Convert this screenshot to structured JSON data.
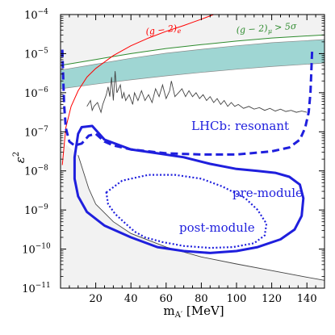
{
  "chart_data": {
    "type": "line",
    "xlabel": "m",
    "xlabel_sub": "A′",
    "xlabel_unit": " [MeV]",
    "ylabel": "ε",
    "ylabel_sup": "2",
    "xlim": [
      0,
      150
    ],
    "ylim_log10": [
      -11,
      -4
    ],
    "yscale": "log",
    "x_ticks": [
      {
        "value": 20,
        "label": "20"
      },
      {
        "value": 40,
        "label": "40"
      },
      {
        "value": 60,
        "label": "60"
      },
      {
        "value": 80,
        "label": "80"
      },
      {
        "value": 100,
        "label": "100"
      },
      {
        "value": 120,
        "label": "120"
      },
      {
        "value": 140,
        "label": "140"
      }
    ],
    "y_ticks": [
      {
        "exp": -11,
        "base": "10",
        "sup": "−11"
      },
      {
        "exp": -10,
        "base": "10",
        "sup": "−10"
      },
      {
        "exp": -9,
        "base": "10",
        "sup": "−9"
      },
      {
        "exp": -8,
        "base": "10",
        "sup": "−8"
      },
      {
        "exp": -7,
        "base": "10",
        "sup": "−7"
      },
      {
        "exp": -6,
        "base": "10",
        "sup": "−6"
      },
      {
        "exp": -5,
        "base": "10",
        "sup": "−5"
      },
      {
        "exp": -4,
        "base": "10",
        "sup": "−4"
      }
    ],
    "annotations": {
      "ge_label": {
        "main": "(g − 2)",
        "sub": "e"
      },
      "gmu_label": {
        "main": "(g − 2)",
        "sub": "μ",
        "suffix": " > 5σ"
      },
      "resonant": "LHCb: resonant",
      "premodule": "pre-module",
      "postmodule": "post-module"
    },
    "colors": {
      "excluded_fill": "#f2f2f2",
      "band_fill": "#9fd6d3",
      "band_edge": "#8a8a8a",
      "ge_line": "#ff0000",
      "gmu_line": "#2e8b2e",
      "lhcb": "#1f1fdd",
      "limit_line": "#444444"
    },
    "series": {
      "beam_dump_upper_log10": [
        [
          10,
          -7.6
        ],
        [
          16,
          -8.45
        ],
        [
          20,
          -8.85
        ],
        [
          30,
          -9.3
        ],
        [
          40,
          -9.6
        ],
        [
          60,
          -9.95
        ],
        [
          80,
          -10.2
        ],
        [
          100,
          -10.38
        ],
        [
          120,
          -10.55
        ],
        [
          140,
          -10.72
        ],
        [
          150,
          -10.8
        ]
      ],
      "gmu_upper_log10": [
        [
          0,
          -5.3
        ],
        [
          20,
          -5.15
        ],
        [
          40,
          -5.0
        ],
        [
          60,
          -4.87
        ],
        [
          80,
          -4.77
        ],
        [
          100,
          -4.68
        ],
        [
          120,
          -4.6
        ],
        [
          150,
          -4.52
        ]
      ],
      "gmu_band_lower_log10": [
        [
          0,
          -5.9
        ],
        [
          20,
          -5.78
        ],
        [
          40,
          -5.67
        ],
        [
          60,
          -5.57
        ],
        [
          80,
          -5.48
        ],
        [
          100,
          -5.4
        ],
        [
          120,
          -5.33
        ],
        [
          150,
          -5.24
        ]
      ],
      "ge_log10": [
        [
          1,
          -7.85
        ],
        [
          3,
          -6.9
        ],
        [
          6,
          -6.35
        ],
        [
          10,
          -5.95
        ],
        [
          15,
          -5.6
        ],
        [
          20,
          -5.38
        ],
        [
          30,
          -5.05
        ],
        [
          40,
          -4.8
        ],
        [
          50,
          -4.6
        ],
        [
          60,
          -4.43
        ],
        [
          70,
          -4.28
        ],
        [
          75,
          -4.2
        ],
        [
          80,
          -4.12
        ],
        [
          87,
          -4.0
        ]
      ],
      "searches_limit_log10": [
        [
          15,
          -6.35
        ],
        [
          17,
          -6.2
        ],
        [
          18,
          -6.45
        ],
        [
          19,
          -6.35
        ],
        [
          21,
          -6.25
        ],
        [
          23,
          -6.5
        ],
        [
          24,
          -6.3
        ],
        [
          26,
          -6.05
        ],
        [
          27,
          -5.85
        ],
        [
          28,
          -6.1
        ],
        [
          29,
          -5.6
        ],
        [
          30,
          -6.2
        ],
        [
          31,
          -5.45
        ],
        [
          32,
          -6.0
        ],
        [
          34,
          -5.8
        ],
        [
          35,
          -6.15
        ],
        [
          36,
          -6.0
        ],
        [
          37,
          -6.2
        ],
        [
          39,
          -6.05
        ],
        [
          41,
          -6.3
        ],
        [
          42,
          -6.0
        ],
        [
          44,
          -6.2
        ],
        [
          46,
          -5.95
        ],
        [
          48,
          -6.2
        ],
        [
          50,
          -6.05
        ],
        [
          52,
          -6.25
        ],
        [
          54,
          -5.9
        ],
        [
          56,
          -6.1
        ],
        [
          58,
          -5.8
        ],
        [
          60,
          -6.15
        ],
        [
          62,
          -5.95
        ],
        [
          63,
          -5.7
        ],
        [
          65,
          -6.1
        ],
        [
          67,
          -6.0
        ],
        [
          69,
          -5.9
        ],
        [
          71,
          -6.1
        ],
        [
          73,
          -5.95
        ],
        [
          75,
          -6.1
        ],
        [
          77,
          -6.0
        ],
        [
          79,
          -6.15
        ],
        [
          81,
          -6.05
        ],
        [
          83,
          -6.2
        ],
        [
          85,
          -6.1
        ],
        [
          87,
          -6.25
        ],
        [
          89,
          -6.15
        ],
        [
          91,
          -6.3
        ],
        [
          93,
          -6.2
        ],
        [
          95,
          -6.35
        ],
        [
          97,
          -6.25
        ],
        [
          99,
          -6.35
        ],
        [
          101,
          -6.3
        ],
        [
          104,
          -6.4
        ],
        [
          107,
          -6.35
        ],
        [
          110,
          -6.42
        ],
        [
          113,
          -6.38
        ],
        [
          116,
          -6.45
        ],
        [
          119,
          -6.4
        ],
        [
          122,
          -6.47
        ],
        [
          125,
          -6.42
        ],
        [
          128,
          -6.48
        ],
        [
          131,
          -6.45
        ],
        [
          134,
          -6.5
        ],
        [
          137,
          -6.47
        ],
        [
          140,
          -6.5
        ]
      ],
      "resonant_log10": [
        [
          1,
          -4.9
        ],
        [
          2,
          -6.3
        ],
        [
          3,
          -6.9
        ],
        [
          5,
          -7.25
        ],
        [
          8,
          -7.35
        ],
        [
          12,
          -7.3
        ],
        [
          16,
          -7.1
        ],
        [
          20,
          -7.05
        ],
        [
          25,
          -7.25
        ],
        [
          30,
          -7.35
        ],
        [
          40,
          -7.45
        ],
        [
          50,
          -7.5
        ],
        [
          60,
          -7.55
        ],
        [
          80,
          -7.58
        ],
        [
          100,
          -7.58
        ],
        [
          120,
          -7.5
        ],
        [
          130,
          -7.4
        ],
        [
          136,
          -7.2
        ],
        [
          139,
          -6.9
        ],
        [
          141,
          -6.5
        ],
        [
          142,
          -6.0
        ],
        [
          142.5,
          -5.5
        ],
        [
          143,
          -4.9
        ]
      ],
      "premodule_log10": [
        [
          8,
          -7.65
        ],
        [
          10,
          -7.05
        ],
        [
          12,
          -6.88
        ],
        [
          18,
          -6.85
        ],
        [
          25,
          -7.2
        ],
        [
          40,
          -7.45
        ],
        [
          55,
          -7.55
        ],
        [
          70,
          -7.65
        ],
        [
          85,
          -7.82
        ],
        [
          100,
          -7.95
        ],
        [
          112,
          -8.0
        ],
        [
          122,
          -8.05
        ],
        [
          130,
          -8.15
        ],
        [
          136,
          -8.35
        ],
        [
          138,
          -8.7
        ],
        [
          137,
          -9.15
        ],
        [
          133,
          -9.5
        ],
        [
          125,
          -9.75
        ],
        [
          112,
          -9.95
        ],
        [
          100,
          -10.05
        ],
        [
          85,
          -10.1
        ],
        [
          70,
          -10.05
        ],
        [
          55,
          -9.95
        ],
        [
          40,
          -9.7
        ],
        [
          25,
          -9.4
        ],
        [
          15,
          -9.05
        ],
        [
          10,
          -8.65
        ],
        [
          8,
          -8.2
        ],
        [
          8,
          -7.65
        ]
      ],
      "postmodule_log10": [
        [
          26,
          -8.55
        ],
        [
          35,
          -8.25
        ],
        [
          50,
          -8.1
        ],
        [
          65,
          -8.1
        ],
        [
          80,
          -8.2
        ],
        [
          92,
          -8.4
        ],
        [
          105,
          -8.7
        ],
        [
          112,
          -9.0
        ],
        [
          117,
          -9.35
        ],
        [
          116,
          -9.65
        ],
        [
          110,
          -9.85
        ],
        [
          98,
          -9.95
        ],
        [
          85,
          -9.97
        ],
        [
          70,
          -9.92
        ],
        [
          58,
          -9.82
        ],
        [
          48,
          -9.7
        ],
        [
          42,
          -9.55
        ],
        [
          37,
          -9.35
        ],
        [
          31,
          -9.1
        ],
        [
          27,
          -8.85
        ],
        [
          26,
          -8.55
        ]
      ]
    }
  }
}
